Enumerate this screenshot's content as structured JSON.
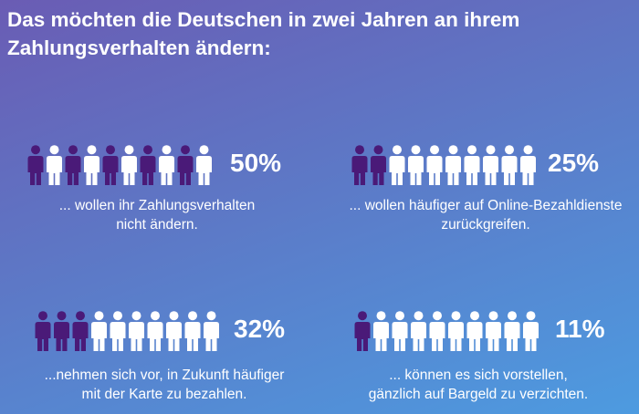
{
  "title": "Das möchten die Deutschen in zwei Jahren an ihrem Zahlungsverhalten ändern:",
  "colors": {
    "highlight": "#4a1a78",
    "base": "#ffffff"
  },
  "chart_data": {
    "type": "pictogram",
    "icon": "person-icon",
    "icons_per_row": 10,
    "stats": [
      {
        "value": 50,
        "label": "50%",
        "highlight_indices": [
          0,
          2,
          4,
          6,
          8
        ],
        "desc_lines": [
          "... wollen ihr Zahlungsverhalten",
          "nicht ändern."
        ]
      },
      {
        "value": 25,
        "label": "25%",
        "highlight_indices": [
          0,
          1
        ],
        "desc_lines": [
          "... wollen häufiger auf Online-Bezahldienste",
          "zurückgreifen."
        ]
      },
      {
        "value": 32,
        "label": "32%",
        "highlight_indices": [
          0,
          1,
          2
        ],
        "desc_lines": [
          "...nehmen sich vor, in Zukunft häufiger",
          "mit der Karte zu bezahlen."
        ]
      },
      {
        "value": 11,
        "label": "11%",
        "highlight_indices": [
          0
        ],
        "desc_lines": [
          "... können es sich vorstellen,",
          "gänzlich auf Bargeld zu verzichten."
        ]
      }
    ]
  }
}
